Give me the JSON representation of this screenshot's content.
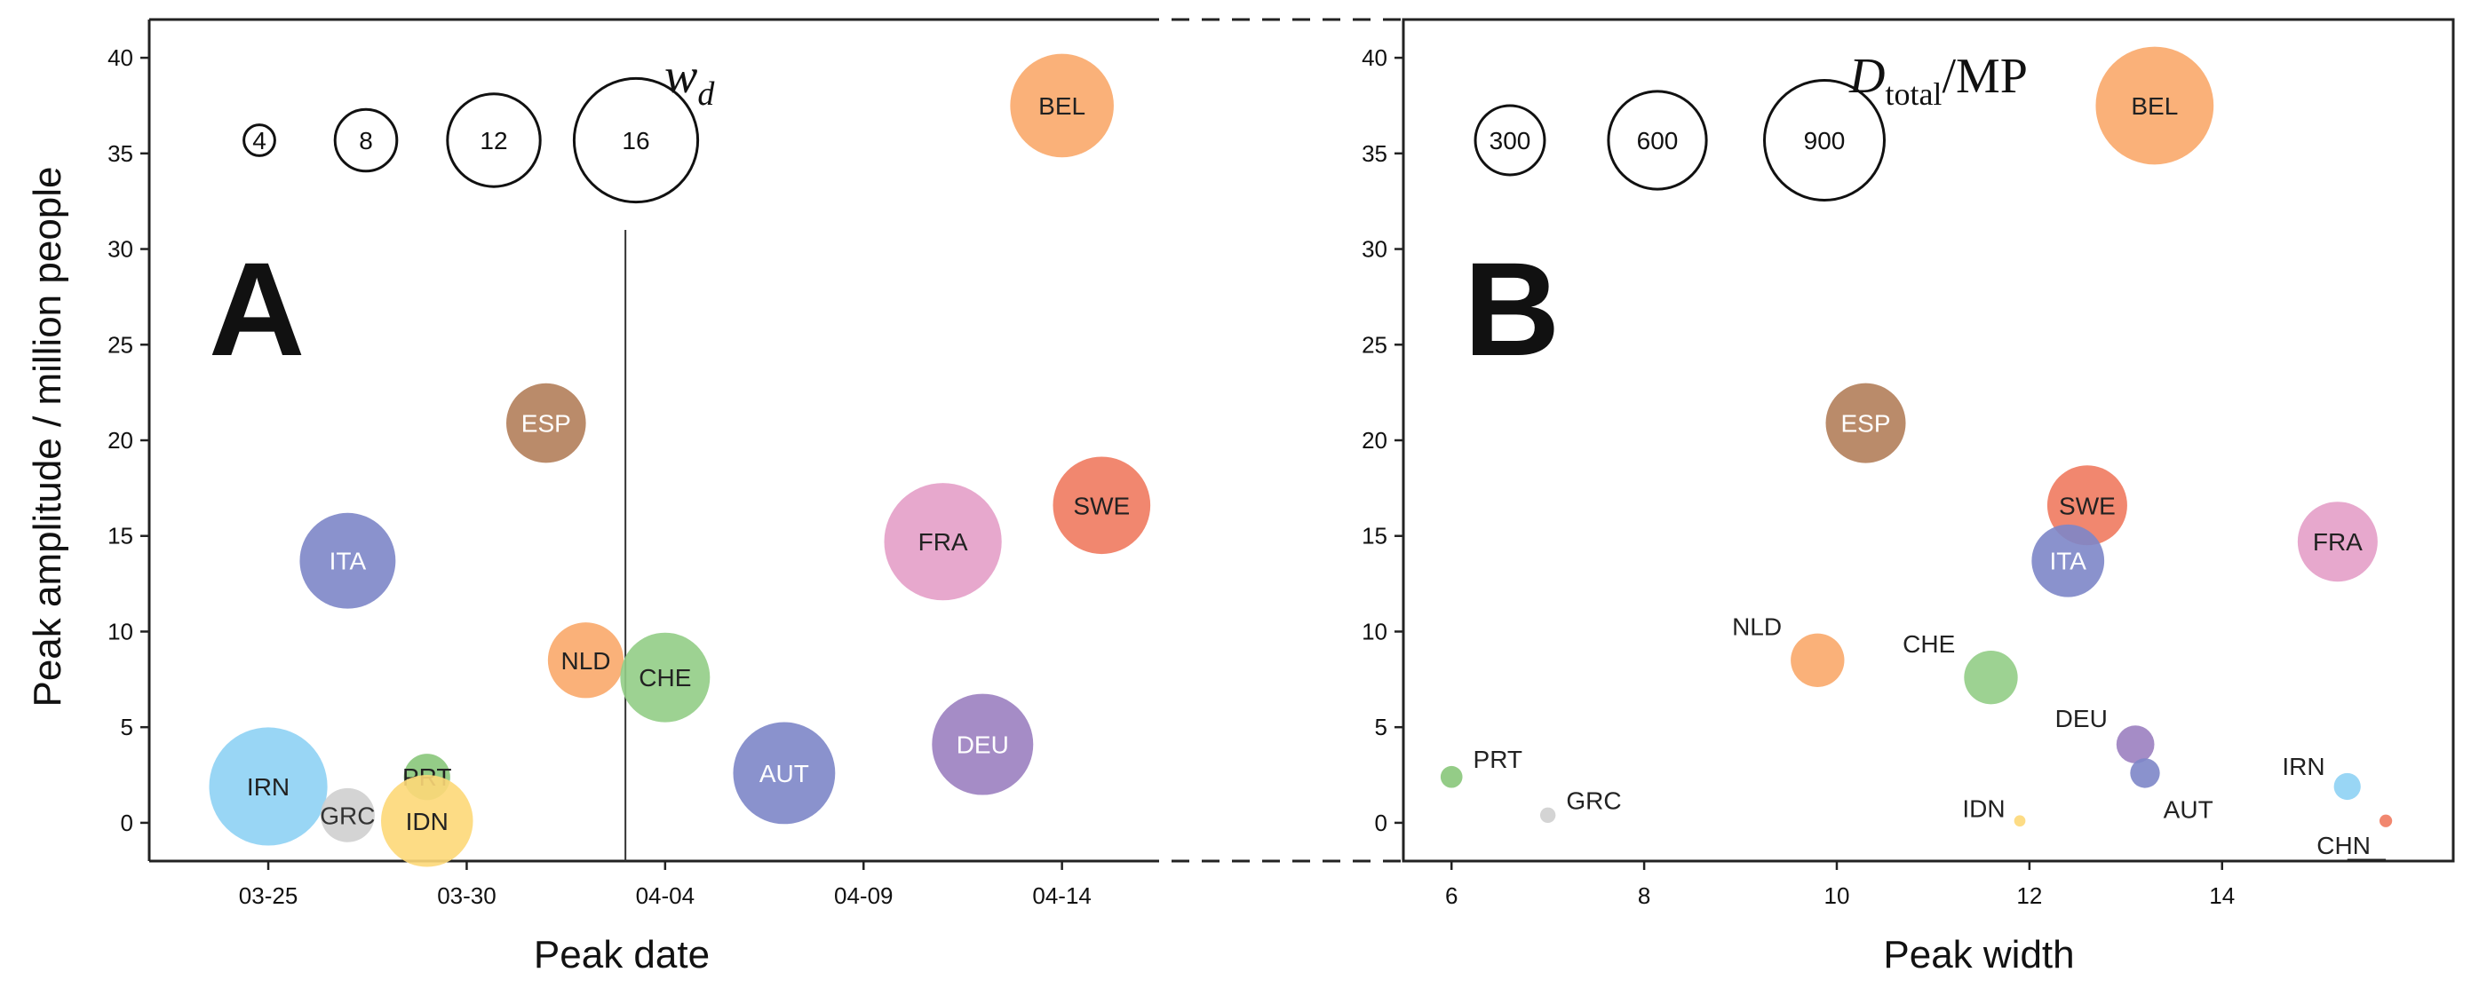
{
  "chart_data": [
    {
      "panel_label": "A",
      "type": "scatter",
      "xlabel": "Peak date",
      "ylabel": "Peak amplitude / million people",
      "x_type": "date",
      "xticks": [
        "03-25",
        "03-30",
        "04-04",
        "04-09",
        "04-14"
      ],
      "x_tick_values": [
        "2020-03-25",
        "2020-03-30",
        "2020-04-04",
        "2020-04-09",
        "2020-04-14"
      ],
      "xlim": [
        "2020-03-22",
        "2020-04-16"
      ],
      "ylim": [
        -2,
        42
      ],
      "yticks": [
        0,
        5,
        10,
        15,
        20,
        25,
        30,
        35,
        40
      ],
      "vline_x": "2020-04-03",
      "size_legend": {
        "title": "w",
        "title_sub": "d",
        "values": [
          4,
          8,
          12,
          16
        ],
        "labels": [
          "4",
          "8",
          "12",
          "16"
        ]
      },
      "points": [
        {
          "label": "BEL",
          "x": "2020-04-14",
          "y": 37.5,
          "size": 13.4,
          "color": "#f9a86a",
          "label_color": "#222222"
        },
        {
          "label": "ESP",
          "x": "2020-04-01",
          "y": 20.9,
          "size": 10.3,
          "color": "#b27e5a",
          "label_color": "#ffffff"
        },
        {
          "label": "SWE",
          "x": "2020-04-15",
          "y": 16.6,
          "size": 12.6,
          "color": "#ef7a5f",
          "label_color": "#222222"
        },
        {
          "label": "FRA",
          "x": "2020-04-11",
          "y": 14.7,
          "size": 15.2,
          "color": "#e49ec8",
          "label_color": "#222222"
        },
        {
          "label": "ITA",
          "x": "2020-03-27",
          "y": 13.7,
          "size": 12.4,
          "color": "#7d86c8",
          "label_color": "#ffffff"
        },
        {
          "label": "NLD",
          "x": "2020-04-02",
          "y": 8.5,
          "size": 9.8,
          "color": "#f9a86a",
          "label_color": "#222222"
        },
        {
          "label": "CHE",
          "x": "2020-04-04",
          "y": 7.6,
          "size": 11.6,
          "color": "#92cd86",
          "label_color": "#222222"
        },
        {
          "label": "DEU",
          "x": "2020-04-12",
          "y": 4.1,
          "size": 13.1,
          "color": "#9b80c0",
          "label_color": "#ffffff"
        },
        {
          "label": "AUT",
          "x": "2020-04-07",
          "y": 2.6,
          "size": 13.2,
          "color": "#7d86c8",
          "label_color": "#ffffff"
        },
        {
          "label": "PRT",
          "x": "2020-03-29",
          "y": 2.4,
          "size": 6.0,
          "color": "#88c77a",
          "label_color": "#222222"
        },
        {
          "label": "IRN",
          "x": "2020-03-25",
          "y": 1.9,
          "size": 15.3,
          "color": "#8ed2f4",
          "label_color": "#222222"
        },
        {
          "label": "GRC",
          "x": "2020-03-27",
          "y": 0.4,
          "size": 7.0,
          "color": "#cfcfcf",
          "label_color": "#333333"
        },
        {
          "label": "IDN",
          "x": "2020-03-29",
          "y": 0.1,
          "size": 11.9,
          "color": "#fdd878",
          "label_color": "#222222"
        }
      ]
    },
    {
      "panel_label": "B",
      "type": "scatter",
      "xlabel": "Peak width",
      "ylabel": "",
      "xlim": [
        5.5,
        16.4
      ],
      "xticks": [
        6,
        8,
        10,
        12,
        14
      ],
      "ylim": [
        -2,
        42
      ],
      "yticks": [
        0,
        5,
        10,
        15,
        20,
        25,
        30,
        35,
        40
      ],
      "size_legend": {
        "title": "D",
        "title_sub": "total",
        "title_rest": "/MP",
        "values": [
          300,
          600,
          900
        ],
        "labels": [
          "300",
          "600",
          "900"
        ]
      },
      "points": [
        {
          "label": "BEL",
          "x": 13.3,
          "y": 37.5,
          "size": 870,
          "color": "#f9a86a",
          "label_color": "#222222",
          "label_pos": "inside"
        },
        {
          "label": "ESP",
          "x": 10.3,
          "y": 20.9,
          "size": 400,
          "color": "#b27e5a",
          "label_color": "#ffffff",
          "label_pos": "inside"
        },
        {
          "label": "SWE",
          "x": 12.6,
          "y": 16.6,
          "size": 400,
          "color": "#ef7a5f",
          "label_color": "#222222",
          "label_pos": "inside"
        },
        {
          "label": "ITA",
          "x": 12.4,
          "y": 13.7,
          "size": 330,
          "color": "#7d86c8",
          "label_color": "#ffffff",
          "label_pos": "inside"
        },
        {
          "label": "FRA",
          "x": 15.2,
          "y": 14.7,
          "size": 400,
          "color": "#e49ec8",
          "label_color": "#222222",
          "label_pos": "inside"
        },
        {
          "label": "NLD",
          "x": 9.8,
          "y": 8.5,
          "size": 180,
          "color": "#f9a86a",
          "label_color": "#222222",
          "label_pos": "left"
        },
        {
          "label": "CHE",
          "x": 11.6,
          "y": 7.6,
          "size": 180,
          "color": "#92cd86",
          "label_color": "#222222",
          "label_pos": "left"
        },
        {
          "label": "DEU",
          "x": 13.1,
          "y": 4.1,
          "size": 90,
          "color": "#9b80c0",
          "label_color": "#222222",
          "label_pos": "left"
        },
        {
          "label": "AUT",
          "x": 13.2,
          "y": 2.6,
          "size": 55,
          "color": "#7d86c8",
          "label_color": "#222222",
          "label_pos": "below"
        },
        {
          "label": "PRT",
          "x": 6.0,
          "y": 2.4,
          "size": 30,
          "color": "#88c77a",
          "label_color": "#222222",
          "label_pos": "right"
        },
        {
          "label": "GRC",
          "x": 7.0,
          "y": 0.4,
          "size": 15,
          "color": "#cfcfcf",
          "label_color": "#222222",
          "label_pos": "right"
        },
        {
          "label": "IDN",
          "x": 11.9,
          "y": 0.1,
          "size": 8,
          "color": "#fdd878",
          "label_color": "#222222",
          "label_pos": "left"
        },
        {
          "label": "IRN",
          "x": 15.3,
          "y": 1.9,
          "size": 45,
          "color": "#8ed2f4",
          "label_color": "#222222",
          "label_pos": "left"
        },
        {
          "label": "CHN",
          "x": 15.7,
          "y": 0.1,
          "size": 10,
          "color": "#ef7a5f",
          "label_color": "#222222",
          "label_pos": "below-left"
        }
      ]
    }
  ]
}
